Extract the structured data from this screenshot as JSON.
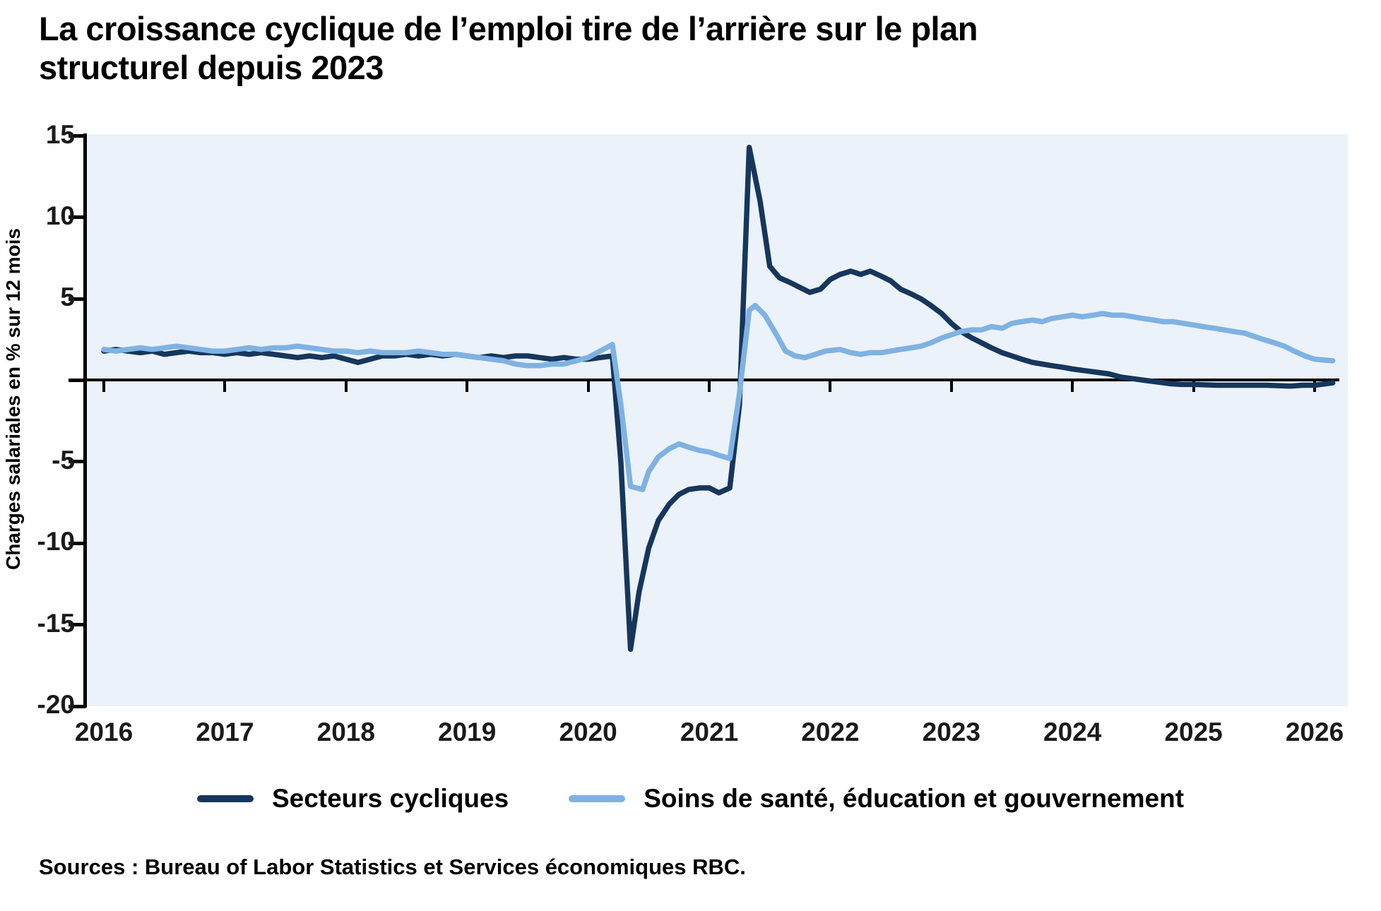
{
  "title": {
    "line1": "La croissance cyclique de l’emploi tire de l’arrière sur le plan",
    "line2": "structurel depuis 2023"
  },
  "y_axis_title": "Charges salariales en % sur 12 mois",
  "source": "Sources : Bureau of Labor Statistics et Services économiques RBC.",
  "colors": {
    "cyclical_line": "#16365c",
    "structural_line": "#7fb2e2",
    "plot_background": "#ebf2fa",
    "axis": "#000000"
  },
  "chart_data": {
    "type": "line",
    "title": "La croissance cyclique de l’emploi tire de l’arrière sur le plan structurel depuis 2023",
    "xlabel": "",
    "ylabel": "Charges salariales en % sur 12 mois",
    "x_range": [
      2016,
      2026.2
    ],
    "y_range": [
      -20,
      15
    ],
    "x_ticks": [
      2016,
      2017,
      2018,
      2019,
      2020,
      2021,
      2022,
      2023,
      2024,
      2025,
      2026
    ],
    "y_ticks": [
      15,
      10,
      5,
      0,
      -5,
      -10,
      -15,
      -20
    ],
    "y_tick_labeled": [
      15,
      10,
      5,
      -5,
      -10,
      -15,
      -20
    ],
    "grid": false,
    "zero_line": true,
    "legend_position": "bottom",
    "series": [
      {
        "name": "Secteurs cycliques",
        "color": "#16365c",
        "points": [
          [
            2016.0,
            1.8
          ],
          [
            2016.1,
            1.9
          ],
          [
            2016.2,
            1.8
          ],
          [
            2016.3,
            1.7
          ],
          [
            2016.4,
            1.8
          ],
          [
            2016.5,
            1.6
          ],
          [
            2016.6,
            1.7
          ],
          [
            2016.7,
            1.8
          ],
          [
            2016.8,
            1.7
          ],
          [
            2016.9,
            1.7
          ],
          [
            2017.0,
            1.6
          ],
          [
            2017.1,
            1.7
          ],
          [
            2017.2,
            1.6
          ],
          [
            2017.3,
            1.7
          ],
          [
            2017.4,
            1.6
          ],
          [
            2017.5,
            1.5
          ],
          [
            2017.6,
            1.4
          ],
          [
            2017.7,
            1.5
          ],
          [
            2017.8,
            1.4
          ],
          [
            2017.9,
            1.5
          ],
          [
            2018.0,
            1.3
          ],
          [
            2018.1,
            1.1
          ],
          [
            2018.2,
            1.3
          ],
          [
            2018.3,
            1.5
          ],
          [
            2018.4,
            1.5
          ],
          [
            2018.5,
            1.6
          ],
          [
            2018.6,
            1.5
          ],
          [
            2018.7,
            1.6
          ],
          [
            2018.8,
            1.5
          ],
          [
            2018.9,
            1.6
          ],
          [
            2019.0,
            1.5
          ],
          [
            2019.1,
            1.4
          ],
          [
            2019.2,
            1.5
          ],
          [
            2019.3,
            1.4
          ],
          [
            2019.4,
            1.5
          ],
          [
            2019.5,
            1.5
          ],
          [
            2019.6,
            1.4
          ],
          [
            2019.7,
            1.3
          ],
          [
            2019.8,
            1.4
          ],
          [
            2019.9,
            1.3
          ],
          [
            2020.0,
            1.3
          ],
          [
            2020.1,
            1.4
          ],
          [
            2020.2,
            1.5
          ],
          [
            2020.27,
            -5.0
          ],
          [
            2020.35,
            -16.5
          ],
          [
            2020.42,
            -13.0
          ],
          [
            2020.5,
            -10.3
          ],
          [
            2020.58,
            -8.6
          ],
          [
            2020.67,
            -7.6
          ],
          [
            2020.75,
            -7.0
          ],
          [
            2020.83,
            -6.7
          ],
          [
            2020.92,
            -6.6
          ],
          [
            2021.0,
            -6.6
          ],
          [
            2021.08,
            -6.9
          ],
          [
            2021.17,
            -6.6
          ],
          [
            2021.25,
            -1.5
          ],
          [
            2021.33,
            14.3
          ],
          [
            2021.42,
            11.0
          ],
          [
            2021.5,
            7.0
          ],
          [
            2021.58,
            6.3
          ],
          [
            2021.67,
            6.0
          ],
          [
            2021.75,
            5.7
          ],
          [
            2021.83,
            5.4
          ],
          [
            2021.92,
            5.6
          ],
          [
            2022.0,
            6.2
          ],
          [
            2022.08,
            6.5
          ],
          [
            2022.17,
            6.7
          ],
          [
            2022.25,
            6.5
          ],
          [
            2022.33,
            6.7
          ],
          [
            2022.42,
            6.4
          ],
          [
            2022.5,
            6.1
          ],
          [
            2022.58,
            5.6
          ],
          [
            2022.67,
            5.3
          ],
          [
            2022.75,
            5.0
          ],
          [
            2022.83,
            4.6
          ],
          [
            2022.92,
            4.1
          ],
          [
            2023.0,
            3.5
          ],
          [
            2023.08,
            3.0
          ],
          [
            2023.17,
            2.6
          ],
          [
            2023.25,
            2.3
          ],
          [
            2023.33,
            2.0
          ],
          [
            2023.42,
            1.7
          ],
          [
            2023.5,
            1.5
          ],
          [
            2023.58,
            1.3
          ],
          [
            2023.67,
            1.1
          ],
          [
            2023.75,
            1.0
          ],
          [
            2023.83,
            0.9
          ],
          [
            2023.92,
            0.8
          ],
          [
            2024.0,
            0.7
          ],
          [
            2024.1,
            0.6
          ],
          [
            2024.2,
            0.5
          ],
          [
            2024.3,
            0.4
          ],
          [
            2024.4,
            0.2
          ],
          [
            2024.5,
            0.1
          ],
          [
            2024.6,
            0.0
          ],
          [
            2024.7,
            -0.1
          ],
          [
            2024.8,
            -0.2
          ],
          [
            2024.9,
            -0.25
          ],
          [
            2025.0,
            -0.25
          ],
          [
            2025.2,
            -0.3
          ],
          [
            2025.4,
            -0.3
          ],
          [
            2025.6,
            -0.3
          ],
          [
            2025.8,
            -0.35
          ],
          [
            2025.9,
            -0.3
          ],
          [
            2026.0,
            -0.3
          ],
          [
            2026.15,
            -0.15
          ]
        ]
      },
      {
        "name": "Soins de santé, éducation et gouvernement",
        "color": "#7fb2e2",
        "points": [
          [
            2016.0,
            1.9
          ],
          [
            2016.1,
            1.8
          ],
          [
            2016.2,
            1.9
          ],
          [
            2016.3,
            2.0
          ],
          [
            2016.4,
            1.9
          ],
          [
            2016.5,
            2.0
          ],
          [
            2016.6,
            2.1
          ],
          [
            2016.7,
            2.0
          ],
          [
            2016.8,
            1.9
          ],
          [
            2016.9,
            1.8
          ],
          [
            2017.0,
            1.8
          ],
          [
            2017.1,
            1.9
          ],
          [
            2017.2,
            2.0
          ],
          [
            2017.3,
            1.9
          ],
          [
            2017.4,
            2.0
          ],
          [
            2017.5,
            2.0
          ],
          [
            2017.6,
            2.1
          ],
          [
            2017.7,
            2.0
          ],
          [
            2017.8,
            1.9
          ],
          [
            2017.9,
            1.8
          ],
          [
            2018.0,
            1.8
          ],
          [
            2018.1,
            1.7
          ],
          [
            2018.2,
            1.8
          ],
          [
            2018.3,
            1.7
          ],
          [
            2018.4,
            1.7
          ],
          [
            2018.5,
            1.7
          ],
          [
            2018.6,
            1.8
          ],
          [
            2018.7,
            1.7
          ],
          [
            2018.8,
            1.6
          ],
          [
            2018.9,
            1.6
          ],
          [
            2019.0,
            1.5
          ],
          [
            2019.1,
            1.4
          ],
          [
            2019.2,
            1.3
          ],
          [
            2019.3,
            1.2
          ],
          [
            2019.4,
            1.0
          ],
          [
            2019.5,
            0.9
          ],
          [
            2019.6,
            0.9
          ],
          [
            2019.7,
            1.0
          ],
          [
            2019.8,
            1.0
          ],
          [
            2019.9,
            1.2
          ],
          [
            2020.0,
            1.4
          ],
          [
            2020.1,
            1.8
          ],
          [
            2020.2,
            2.2
          ],
          [
            2020.27,
            -1.5
          ],
          [
            2020.35,
            -6.5
          ],
          [
            2020.45,
            -6.7
          ],
          [
            2020.5,
            -5.6
          ],
          [
            2020.58,
            -4.7
          ],
          [
            2020.67,
            -4.2
          ],
          [
            2020.75,
            -3.9
          ],
          [
            2020.83,
            -4.1
          ],
          [
            2020.92,
            -4.3
          ],
          [
            2021.0,
            -4.4
          ],
          [
            2021.08,
            -4.6
          ],
          [
            2021.17,
            -4.8
          ],
          [
            2021.25,
            -0.8
          ],
          [
            2021.33,
            4.3
          ],
          [
            2021.38,
            4.6
          ],
          [
            2021.46,
            4.0
          ],
          [
            2021.54,
            3.0
          ],
          [
            2021.63,
            1.8
          ],
          [
            2021.71,
            1.5
          ],
          [
            2021.79,
            1.4
          ],
          [
            2021.88,
            1.6
          ],
          [
            2021.96,
            1.8
          ],
          [
            2022.08,
            1.9
          ],
          [
            2022.17,
            1.7
          ],
          [
            2022.25,
            1.6
          ],
          [
            2022.33,
            1.7
          ],
          [
            2022.42,
            1.7
          ],
          [
            2022.5,
            1.8
          ],
          [
            2022.58,
            1.9
          ],
          [
            2022.67,
            2.0
          ],
          [
            2022.75,
            2.1
          ],
          [
            2022.83,
            2.3
          ],
          [
            2022.92,
            2.6
          ],
          [
            2023.0,
            2.8
          ],
          [
            2023.08,
            3.0
          ],
          [
            2023.17,
            3.1
          ],
          [
            2023.25,
            3.1
          ],
          [
            2023.33,
            3.3
          ],
          [
            2023.42,
            3.2
          ],
          [
            2023.5,
            3.5
          ],
          [
            2023.58,
            3.6
          ],
          [
            2023.67,
            3.7
          ],
          [
            2023.75,
            3.6
          ],
          [
            2023.83,
            3.8
          ],
          [
            2023.92,
            3.9
          ],
          [
            2024.0,
            4.0
          ],
          [
            2024.08,
            3.9
          ],
          [
            2024.17,
            4.0
          ],
          [
            2024.25,
            4.1
          ],
          [
            2024.33,
            4.0
          ],
          [
            2024.42,
            4.0
          ],
          [
            2024.5,
            3.9
          ],
          [
            2024.58,
            3.8
          ],
          [
            2024.67,
            3.7
          ],
          [
            2024.75,
            3.6
          ],
          [
            2024.83,
            3.6
          ],
          [
            2024.92,
            3.5
          ],
          [
            2025.0,
            3.4
          ],
          [
            2025.08,
            3.3
          ],
          [
            2025.17,
            3.2
          ],
          [
            2025.25,
            3.1
          ],
          [
            2025.33,
            3.0
          ],
          [
            2025.42,
            2.9
          ],
          [
            2025.5,
            2.7
          ],
          [
            2025.58,
            2.5
          ],
          [
            2025.67,
            2.3
          ],
          [
            2025.75,
            2.1
          ],
          [
            2025.83,
            1.8
          ],
          [
            2025.92,
            1.5
          ],
          [
            2026.0,
            1.3
          ],
          [
            2026.15,
            1.2
          ]
        ]
      }
    ]
  }
}
